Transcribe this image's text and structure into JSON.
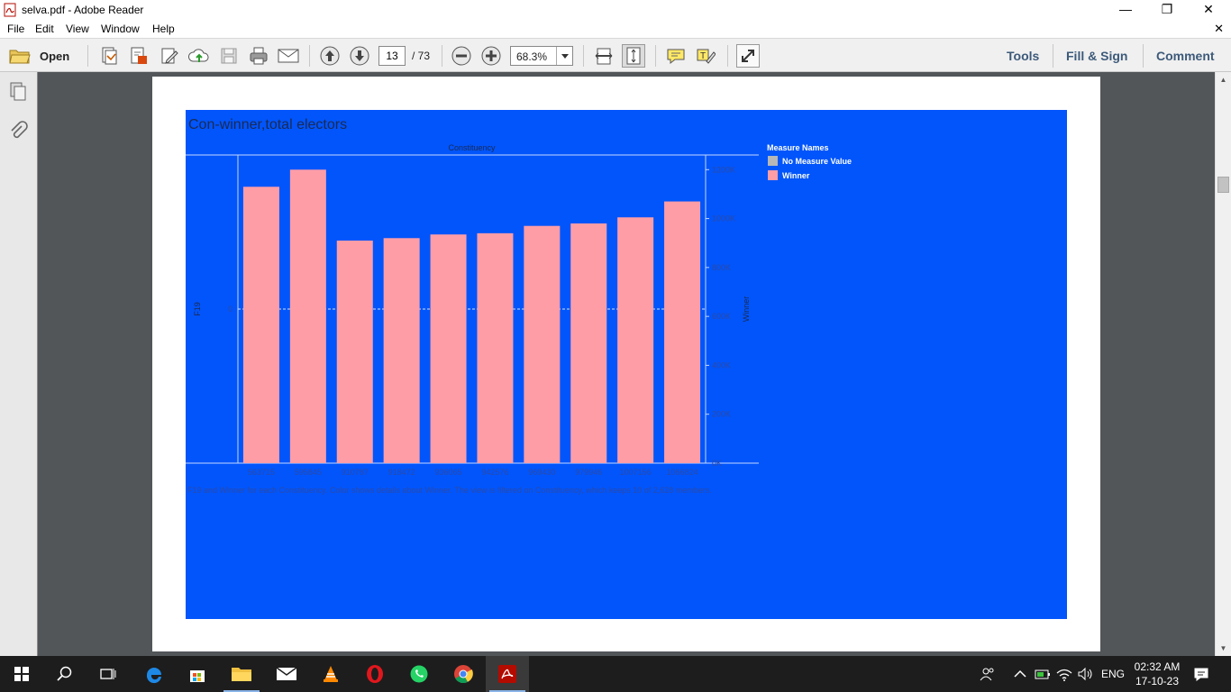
{
  "window": {
    "title": "selva.pdf - Adobe Reader",
    "minimize": "—",
    "maximize": "❐",
    "close": "✕"
  },
  "menu": {
    "items": [
      "File",
      "Edit",
      "View",
      "Window",
      "Help"
    ],
    "close_doc": "✕"
  },
  "toolbar": {
    "open_label": "Open",
    "page_current": "13",
    "page_total": "/ 73",
    "zoom": "68.3%",
    "tools_label": "Tools",
    "fill_sign_label": "Fill & Sign",
    "comment_label": "Comment"
  },
  "viz": {
    "title": "Con-winner,total electors",
    "caption": "F19 and Winner for each Constituency.  Color shows details about Winner. The view is filtered on Constituency, which keeps 10 of 2,628 members.",
    "legend": {
      "title": "Measure Names",
      "items": [
        {
          "label": "No Measure Value",
          "color": "#b7b7b7"
        },
        {
          "label": "Winner",
          "color": "#ff9da7"
        }
      ]
    },
    "colors": {
      "background": "#0155fb",
      "bar": "#ff9da7",
      "axis_text": "#2c4aa8",
      "axis_line": "#c7d6ff"
    }
  },
  "chart_data": {
    "type": "bar",
    "title": "Con-winner,total electors",
    "xlabel": "Constituency",
    "ylabel_left": "F19",
    "ylabel_right": "Winner",
    "categories": [
      "563715",
      "595845",
      "910787",
      "918472",
      "936065",
      "942576",
      "969430",
      "979946",
      "1007156",
      "1066824"
    ],
    "series": [
      {
        "name": "Winner",
        "values": [
          1130000,
          1200000,
          910000,
          920000,
          935000,
          940000,
          970000,
          980000,
          1005000,
          1070000
        ]
      }
    ],
    "right_ticks": [
      "0K",
      "200K",
      "400K",
      "600K",
      "800K",
      "1000K",
      "1200K"
    ],
    "right_tick_values": [
      0,
      200000,
      400000,
      600000,
      800000,
      1000000,
      1200000
    ],
    "left_tick": "0",
    "ylim": [
      0,
      1260000
    ],
    "grid": false
  },
  "taskbar": {
    "language": "ENG",
    "time": "02:32 AM",
    "date": "17-10-23"
  }
}
